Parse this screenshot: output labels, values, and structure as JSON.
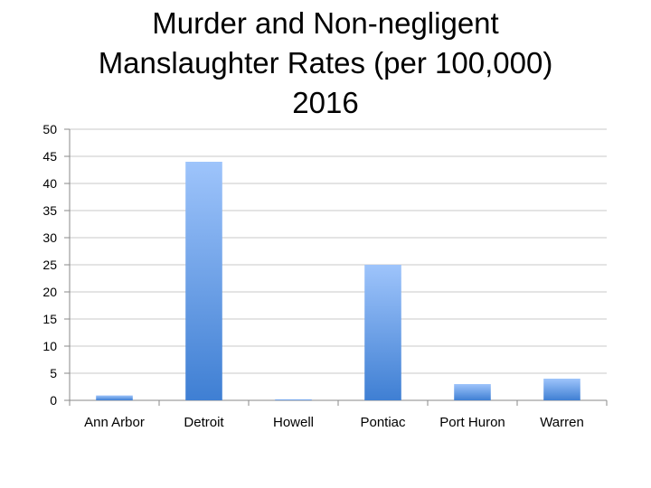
{
  "chart_data": {
    "type": "bar",
    "title_lines": [
      "Murder and Non-negligent",
      "Manslaughter Rates (per 100,000)",
      "2016"
    ],
    "categories": [
      "Ann Arbor",
      "Detroit",
      "Howell",
      "Pontiac",
      "Port Huron",
      "Warren"
    ],
    "values": [
      0.9,
      44,
      0.1,
      25,
      3,
      4
    ],
    "ylim": [
      0,
      50
    ],
    "yticks": [
      "0",
      "5",
      "10",
      "15",
      "20",
      "25",
      "30",
      "35",
      "40",
      "45",
      "50"
    ],
    "grid": true,
    "legend": "none",
    "colors": {
      "bar_top": "#9ec4fb",
      "bar_bottom": "#3f7fd3",
      "grid": "#c8c8c8",
      "axis": "#8a8a8a"
    }
  }
}
